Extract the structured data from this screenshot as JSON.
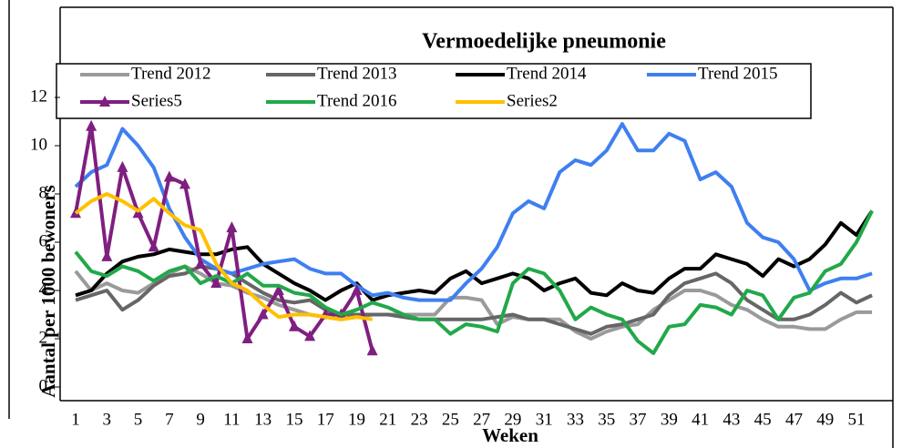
{
  "chart_data": {
    "type": "line",
    "title": "Vermoedelijke pneumonie",
    "x_label": "Weken",
    "y_label": "Aantal per 1000 bewoners",
    "categories": [
      1,
      null,
      3,
      null,
      5,
      null,
      7,
      null,
      9,
      null,
      11,
      null,
      13,
      null,
      15,
      null,
      17,
      null,
      19,
      null,
      21,
      null,
      23,
      null,
      25,
      null,
      27,
      null,
      29,
      null,
      31,
      null,
      33,
      null,
      35,
      null,
      37,
      null,
      39,
      null,
      41,
      null,
      43,
      null,
      45,
      null,
      47,
      null,
      49,
      null,
      51,
      null
    ],
    "ylim": [
      0,
      16
    ],
    "yticks": [
      0,
      2,
      4,
      6,
      8,
      10,
      12
    ],
    "series": [
      {
        "name": "Trend 2012",
        "color": "#9a9a9a",
        "values": [
          4.8,
          4.0,
          4.3,
          4.0,
          3.9,
          4.3,
          4.7,
          5.0,
          4.7,
          4.3,
          4.2,
          3.9,
          3.7,
          3.4,
          3.2,
          3.0,
          2.9,
          2.8,
          2.9,
          3.0,
          3.0,
          3.0,
          3.0,
          3.0,
          3.7,
          3.7,
          3.6,
          2.6,
          2.9,
          2.8,
          2.8,
          2.8,
          2.3,
          2.0,
          2.3,
          2.5,
          2.6,
          3.2,
          3.6,
          4.0,
          4.0,
          3.8,
          3.4,
          3.2,
          2.8,
          2.5,
          2.5,
          2.4,
          2.4,
          2.8,
          3.1,
          3.1
        ]
      },
      {
        "name": "Trend 2013",
        "color": "#666666",
        "values": [
          3.6,
          3.8,
          4.0,
          3.2,
          3.6,
          4.2,
          4.6,
          4.7,
          5.0,
          4.9,
          4.7,
          4.3,
          3.9,
          3.6,
          3.5,
          3.6,
          3.2,
          3.0,
          3.0,
          3.0,
          3.0,
          2.9,
          2.8,
          2.8,
          2.8,
          2.8,
          2.8,
          2.9,
          3.0,
          2.8,
          2.8,
          2.6,
          2.4,
          2.2,
          2.5,
          2.6,
          2.8,
          3.0,
          3.8,
          4.3,
          4.5,
          4.7,
          4.3,
          3.6,
          3.2,
          2.8,
          2.8,
          3.0,
          3.4,
          3.9,
          3.5,
          3.8
        ]
      },
      {
        "name": "Trend 2014",
        "color": "#000000",
        "values": [
          3.8,
          4.0,
          4.7,
          5.2,
          5.4,
          5.5,
          5.7,
          5.6,
          5.5,
          5.5,
          5.7,
          5.8,
          5.1,
          4.7,
          4.3,
          4.0,
          3.6,
          4.0,
          4.3,
          3.6,
          3.8,
          3.9,
          4.0,
          3.9,
          4.5,
          4.8,
          4.3,
          4.5,
          4.7,
          4.5,
          4.0,
          4.3,
          4.5,
          3.9,
          3.8,
          4.3,
          4.0,
          3.9,
          4.5,
          4.9,
          4.9,
          5.5,
          5.3,
          5.1,
          4.6,
          5.3,
          5.0,
          5.3,
          5.9,
          6.8,
          6.3,
          7.3
        ]
      },
      {
        "name": "Trend 2015",
        "color": "#3f7ff0",
        "values": [
          8.3,
          8.9,
          9.2,
          10.7,
          10.0,
          9.1,
          7.4,
          6.2,
          5.3,
          4.9,
          4.7,
          4.9,
          5.1,
          5.2,
          5.3,
          4.9,
          4.7,
          4.7,
          4.2,
          3.8,
          3.9,
          3.7,
          3.6,
          3.6,
          3.6,
          4.3,
          4.9,
          5.8,
          7.2,
          7.7,
          7.4,
          8.9,
          9.4,
          9.2,
          9.8,
          10.9,
          9.8,
          9.8,
          10.5,
          10.2,
          8.6,
          8.9,
          8.3,
          6.8,
          6.2,
          6.0,
          5.3,
          4.0,
          4.3,
          4.5,
          4.5,
          4.7
        ]
      },
      {
        "name": "Series5",
        "color": "#7f1f80",
        "marker": "triangle",
        "values": [
          7.2,
          10.8,
          5.4,
          9.1,
          7.2,
          5.8,
          8.7,
          8.4,
          5.1,
          4.3,
          6.6,
          2.0,
          3.0,
          4.0,
          2.5,
          2.1,
          3.0,
          3.0,
          4.0,
          1.5,
          null,
          null,
          null,
          null,
          null,
          null,
          null,
          null,
          null,
          null,
          null,
          null,
          null,
          null,
          null,
          null,
          null,
          null,
          null,
          null,
          null,
          null,
          null,
          null,
          null,
          null,
          null,
          null,
          null,
          null,
          null,
          null
        ]
      },
      {
        "name": "Trend 2016",
        "color": "#22a84a",
        "values": [
          5.6,
          4.8,
          4.6,
          5.0,
          4.8,
          4.4,
          4.8,
          5.0,
          4.3,
          4.6,
          4.3,
          4.7,
          4.2,
          4.2,
          3.9,
          3.8,
          3.3,
          3.0,
          3.2,
          3.5,
          3.3,
          3.0,
          2.8,
          2.8,
          2.2,
          2.6,
          2.5,
          2.3,
          4.3,
          4.9,
          4.7,
          4.0,
          2.8,
          3.3,
          3.0,
          2.8,
          1.9,
          1.4,
          2.5,
          2.6,
          3.4,
          3.3,
          3.0,
          4.0,
          3.8,
          2.8,
          3.7,
          3.9,
          4.8,
          5.1,
          6.0,
          7.3
        ]
      },
      {
        "name": "Series2",
        "color": "#ffc000",
        "values": [
          7.2,
          7.7,
          8.0,
          7.7,
          7.3,
          7.8,
          7.2,
          6.7,
          6.5,
          5.1,
          4.3,
          4.0,
          3.4,
          2.9,
          3.0,
          3.0,
          2.9,
          2.8,
          2.9,
          2.8,
          null,
          null,
          null,
          null,
          null,
          null,
          null,
          null,
          null,
          null,
          null,
          null,
          null,
          null,
          null,
          null,
          null,
          null,
          null,
          null,
          null,
          null,
          null,
          null,
          null,
          null,
          null,
          null,
          null,
          null,
          null,
          null
        ]
      }
    ]
  }
}
